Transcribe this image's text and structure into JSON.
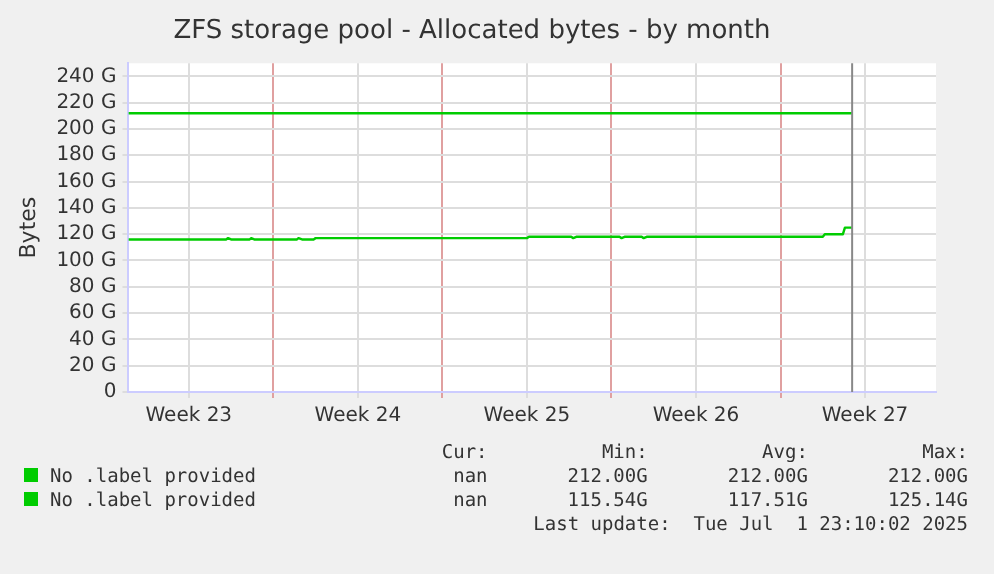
{
  "chart_data": {
    "type": "line",
    "title": "ZFS storage pool - Allocated bytes - by month",
    "ylabel": "Bytes",
    "xlim": [
      "2025-06-02T00:00",
      "2025-07-05T10:30"
    ],
    "xticks": [
      {
        "value": "2025-06-04T12:00",
        "label": "Week 23"
      },
      {
        "value": "2025-06-08",
        "label": null
      },
      {
        "value": "2025-06-11T12:00",
        "label": "Week 24"
      },
      {
        "value": "2025-06-15",
        "label": null
      },
      {
        "value": "2025-06-18T12:00",
        "label": "Week 25"
      },
      {
        "value": "2025-06-22",
        "label": null
      },
      {
        "value": "2025-06-25T12:00",
        "label": "Week 26"
      },
      {
        "value": "2025-06-29",
        "label": null
      },
      {
        "value": "2025-07-02T12:00",
        "label": "Week 27"
      }
    ],
    "ylim": [
      0,
      250
    ],
    "yticks": [
      0,
      {
        "value": 20,
        "label": "20 G"
      },
      {
        "value": 40,
        "label": "40 G"
      },
      {
        "value": 60,
        "label": "60 G"
      },
      {
        "value": 80,
        "label": "80 G"
      },
      {
        "value": 100,
        "label": "100 G"
      },
      {
        "value": 120,
        "label": "120 G"
      },
      {
        "value": 140,
        "label": "140 G"
      },
      {
        "value": 160,
        "label": "160 G"
      },
      {
        "value": 180,
        "label": "180 G"
      },
      {
        "value": 200,
        "label": "200 G"
      },
      {
        "value": 220,
        "label": "220 G"
      },
      {
        "value": 240,
        "label": "240 G"
      }
    ],
    "series": [
      {
        "name": "No .label provided",
        "color": "#00cc00",
        "x": [
          "2025-06-02T00:00",
          "2025-07-01T23:10"
        ],
        "values": [
          212,
          212
        ]
      },
      {
        "name": "No .label provided",
        "color": "#00cc00",
        "x": [
          "2025-06-02T00:00",
          "2025-06-06T01:00",
          "2025-06-06T03:00",
          "2025-06-06T06:00",
          "2025-06-07T00:30",
          "2025-06-07T02:00",
          "2025-06-07T05:00",
          "2025-06-08T23:30",
          "2025-06-09T01:00",
          "2025-06-09T04:30",
          "2025-06-09T16:00",
          "2025-06-09T18:00",
          "2025-06-18T12:00",
          "2025-06-18T14:00",
          "2025-06-20T08:00",
          "2025-06-20T10:00",
          "2025-06-20T13:00",
          "2025-06-22T08:00",
          "2025-06-22T10:00",
          "2025-06-22T13:00",
          "2025-06-23T06:00",
          "2025-06-23T08:00",
          "2025-06-23T11:00",
          "2025-06-30T18:00",
          "2025-06-30T20:00",
          "2025-07-01T14:00",
          "2025-07-01T16:00",
          "2025-07-01T23:10"
        ],
        "values": [
          116,
          116,
          117,
          116,
          116,
          117,
          116,
          116,
          117,
          116,
          116,
          117,
          117,
          118,
          118,
          117,
          118,
          118,
          117,
          118,
          118,
          117,
          118,
          118,
          120,
          120,
          125,
          125
        ]
      }
    ],
    "ref_lines": [
      {
        "axis": "x",
        "value": "2025-07-01T23:10",
        "color": "#888888"
      }
    ],
    "grid": true,
    "legend": "bottom left",
    "line_style": "solid",
    "marker": "none",
    "annotations": [
      "Cur:          Min:          Avg:          Max:",
      "nan       212.00G       212.00G       212.00G",
      "nan       115.54G       117.51G       125.14G",
      "Last update:  Tue Jul  1 23:10:02 2025"
    ]
  }
}
